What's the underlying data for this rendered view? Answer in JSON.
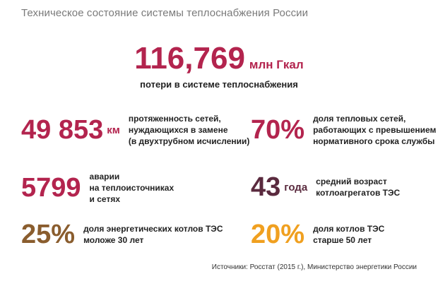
{
  "title": "Техническое состояние системы теплоснабжения России",
  "hero": {
    "value": "116,769",
    "unit": "млн Гкал",
    "desc": "потери в системе теплоснабжения"
  },
  "stats": {
    "networks": {
      "value": "49 853",
      "unit": "км",
      "color": "#b3244e",
      "lines": [
        "протяженность сетей,",
        "нуждающихся в замене",
        "(в двухтрубном исчислении)"
      ]
    },
    "overdue": {
      "value": "70%",
      "color": "#b3244e",
      "lines": [
        "доля тепловых сетей,",
        "работающих с превышением",
        "нормативного срока службы"
      ]
    },
    "accidents": {
      "value": "5799",
      "color": "#b3244e",
      "lines": [
        "аварии",
        "на теплоисточниках",
        "и сетях"
      ]
    },
    "age": {
      "value": "43",
      "unit": "года",
      "color": "#5a2a3e",
      "lines": [
        "средний возраст",
        "котлоагрегатов ТЭС"
      ]
    },
    "young": {
      "value": "25%",
      "color": "#8a5d2e",
      "lines": [
        "доля энергетических котлов ТЭС",
        "моложе 30 лет"
      ]
    },
    "old": {
      "value": "20%",
      "color": "#f0a020",
      "lines": [
        "доля котлов ТЭС",
        "старше 50 лет"
      ]
    }
  },
  "source": "Источники: Росстат (2015 г.), Министерство энергетики России"
}
